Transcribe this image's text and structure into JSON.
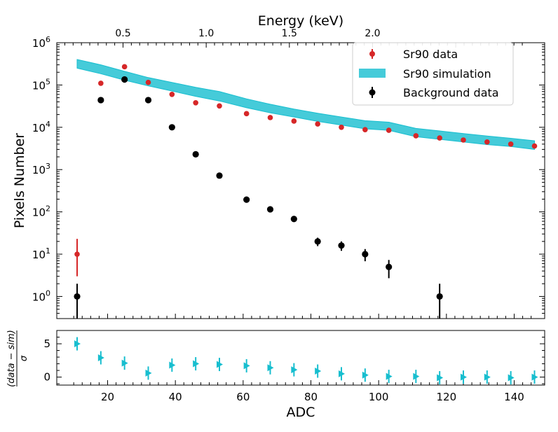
{
  "chart_data": [
    {
      "type": "scatter",
      "panel": "main",
      "xlabel": "ADC",
      "ylabel": "Pixels Number",
      "top_xlabel": "Energy (keV)",
      "yscale": "log",
      "xlim": [
        5,
        149
      ],
      "ylim": [
        0.3,
        1000000
      ],
      "top_axis": {
        "ticks": [
          0.5,
          1.0,
          1.5,
          2.0
        ],
        "tick_labels": [
          "0.5",
          "1.0",
          "1.5",
          "2.0"
        ],
        "adc_per_keV": 49.1
      },
      "y_tick_labels": [
        {
          "value": 1,
          "base": "10",
          "exp": "0"
        },
        {
          "value": 10,
          "base": "10",
          "exp": "1"
        },
        {
          "value": 100,
          "base": "10",
          "exp": "2"
        },
        {
          "value": 1000,
          "base": "10",
          "exp": "3"
        },
        {
          "value": 10000,
          "base": "10",
          "exp": "4"
        },
        {
          "value": 100000,
          "base": "10",
          "exp": "5"
        },
        {
          "value": 1000000,
          "base": "10",
          "exp": "6"
        }
      ],
      "legend": {
        "placement": "top-right",
        "entries": [
          "Sr90 data",
          "Sr90 simulation",
          "Background data"
        ]
      },
      "series": [
        {
          "name": "Sr90 data",
          "kind": "errorbar",
          "color": "#d62728",
          "x": [
            11,
            25,
            32,
            39,
            46,
            53,
            61,
            68,
            75,
            82,
            89,
            96,
            103,
            111,
            118,
            125,
            132,
            139,
            146
          ],
          "y": [
            10,
            270000,
            115000,
            60000,
            38000,
            32000,
            21000,
            17000,
            14000,
            12000,
            10000,
            8800,
            8500,
            6300,
            5600,
            5000,
            4500,
            4000,
            3600
          ],
          "yerr_low": [
            7,
            0,
            0,
            0,
            0,
            0,
            0,
            0,
            0,
            0,
            0,
            0,
            0,
            0,
            0,
            0,
            0,
            0,
            0
          ],
          "yerr_high": [
            13,
            0,
            0,
            0,
            0,
            0,
            0,
            0,
            0,
            0,
            0,
            0,
            0,
            0,
            0,
            0,
            0,
            0,
            0
          ]
        },
        {
          "name": "Sr90 data (second point)",
          "kind": "errorbar",
          "color": "#d62728",
          "x": [
            18
          ],
          "y": [
            110000
          ],
          "yerr_low": [
            0
          ],
          "yerr_high": [
            0
          ]
        },
        {
          "name": "Sr90 simulation",
          "kind": "band",
          "color": "#17becf",
          "x": [
            11,
            18,
            25,
            32,
            39,
            46,
            53,
            61,
            68,
            75,
            82,
            89,
            96,
            103,
            111,
            118,
            125,
            132,
            139,
            146
          ],
          "low": [
            250000,
            185000,
            130000,
            95000,
            72000,
            54000,
            42000,
            29000,
            22000,
            17500,
            13800,
            11300,
            9200,
            8500,
            6000,
            5200,
            4500,
            3900,
            3500,
            3000
          ],
          "high": [
            400000,
            300000,
            210000,
            150000,
            115000,
            88000,
            70000,
            47000,
            35000,
            27000,
            21500,
            17500,
            14300,
            13200,
            9400,
            8200,
            7100,
            6200,
            5500,
            4800
          ]
        },
        {
          "name": "Background data",
          "kind": "errorbar",
          "color": "#000000",
          "x": [
            11,
            18,
            25,
            32,
            39,
            46,
            53,
            61,
            68,
            75,
            82,
            89,
            96,
            103,
            118
          ],
          "y": [
            1,
            44000,
            135000,
            44000,
            10000,
            2300,
            720,
            195,
            115,
            68,
            20,
            16,
            10,
            5,
            1
          ],
          "yerr_low": [
            0.9,
            0,
            0,
            0,
            0,
            0,
            0,
            0,
            0,
            0,
            4.5,
            4,
            3.2,
            2.3,
            0.9
          ],
          "yerr_high": [
            1,
            0,
            0,
            0,
            0,
            0,
            0,
            0,
            0,
            0,
            4.5,
            4,
            3.2,
            2.3,
            1
          ]
        }
      ]
    },
    {
      "type": "scatter",
      "panel": "residual",
      "xlabel": "ADC",
      "ylabel_num": "(data − sim)",
      "ylabel_den": "σ",
      "xlim": [
        5,
        149
      ],
      "ylim": [
        -1.2,
        7
      ],
      "x_ticks": [
        20,
        40,
        60,
        80,
        100,
        120,
        140
      ],
      "y_ticks": [
        0,
        5
      ],
      "y_tick_labels": [
        "0",
        "5"
      ],
      "series": [
        {
          "name": "residual",
          "color": "#17becf",
          "marker": "triangle-right",
          "x": [
            11,
            18,
            25,
            32,
            39,
            46,
            53,
            61,
            68,
            75,
            82,
            89,
            96,
            103,
            111,
            118,
            125,
            132,
            139,
            146
          ],
          "y": [
            5,
            2.9,
            2.1,
            0.6,
            1.8,
            2,
            1.9,
            1.7,
            1.4,
            1.1,
            0.9,
            0.5,
            0.3,
            0.1,
            0.1,
            -0.1,
            0,
            0,
            -0.1,
            0
          ],
          "yerr": [
            1,
            1,
            1,
            1,
            1,
            1,
            1,
            1,
            1,
            1,
            1,
            1,
            1,
            1,
            1,
            1,
            1,
            1,
            1,
            1
          ]
        }
      ]
    }
  ]
}
